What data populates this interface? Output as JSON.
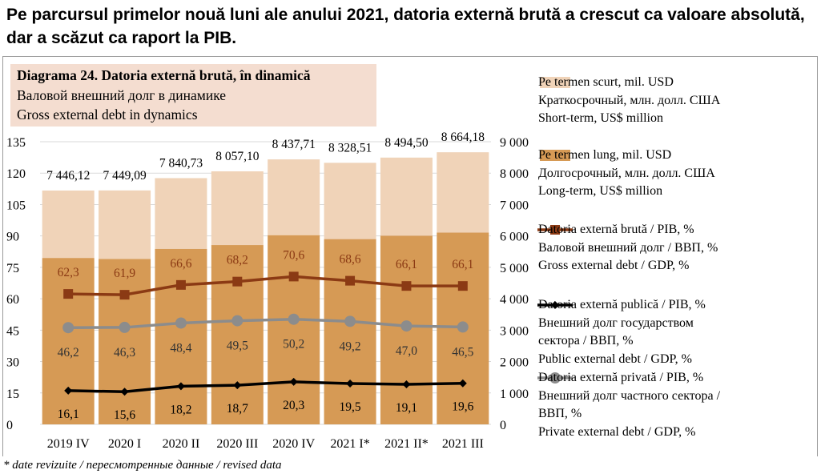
{
  "headline": "Pe parcursul primelor nouă luni ale anului 2021, datoria externă brută a crescut ca valoare absolută, dar a scăzut ca raport la PIB.",
  "diagram_title": {
    "line1": "Diagrama 24. Datoria externă brută, în dinamică",
    "line2": "Валовой внешний долг в динамике",
    "line3": "Gross external debt in dynamics"
  },
  "legend": [
    {
      "id": "short",
      "lines": [
        "Pe termen scurt, mil. USD",
        "Краткосрочный, млн. долл. США",
        "Short-term, US$ million"
      ]
    },
    {
      "id": "long",
      "lines": [
        "Pe termen lung, mil. USD",
        "Долгосрочный, млн. долл. США",
        "Long-term, US$ million"
      ]
    },
    {
      "id": "gross",
      "lines": [
        "Datoria externă brută / PIB, %",
        "Валовой внешний долг / ВВП, %",
        "Gross external debt / GDP, %"
      ]
    },
    {
      "id": "public",
      "lines": [
        "Datoria externă publică  / PIB, %",
        "Внешний долг государством",
        "сектора  / ВВП, %",
        "Public external debt / GDP, %"
      ]
    },
    {
      "id": "private",
      "lines": [
        "Datoria externă privată  / PIB, %",
        "Внешний долг частного сектора /",
        "ВВП, %",
        "Private external debt / GDP, %"
      ]
    }
  ],
  "footnote": "* date revizuite / пересмотренные данные / revised data",
  "colors": {
    "short_term": "#f0d3b8",
    "long_term": "#d69a55",
    "gross_line": "#8b3a14",
    "public_line": "#000000",
    "private_line": "#8c8c8c",
    "title_bg": "#f4ddd0",
    "gridline": "#d9d9d9"
  },
  "chart_data": {
    "type": "bar",
    "categories": [
      "2019 IV",
      "2020 I",
      "2020 II",
      "2020 III",
      "2020 IV",
      "2021 I*",
      "2021 II*",
      "2021 III"
    ],
    "total_labels": [
      "7 446,12",
      "7 449,09",
      "7 840,73",
      "8 057,10",
      "8 437,71",
      "8 328,51",
      "8 494,50",
      "8 664,18"
    ],
    "series": [
      {
        "name": "Pe termen lung, mil. USD",
        "axis": "right",
        "kind": "stacked-bar",
        "values": [
          5300,
          5270,
          5590,
          5710,
          6025,
          5900,
          6010,
          6110
        ]
      },
      {
        "name": "Pe termen scurt, mil. USD",
        "axis": "right",
        "kind": "stacked-bar",
        "values": [
          2146.12,
          2179.09,
          2250.73,
          2347.1,
          2412.71,
          2428.51,
          2484.5,
          2554.18
        ]
      },
      {
        "name": "Datoria externă brută / PIB, %",
        "axis": "left",
        "kind": "line",
        "values": [
          62.3,
          61.9,
          66.6,
          68.2,
          70.6,
          68.6,
          66.1,
          66.1
        ],
        "labels": [
          "62,3",
          "61,9",
          "66,6",
          "68,2",
          "70,6",
          "68,6",
          "66,1",
          "66,1"
        ]
      },
      {
        "name": "Datoria externă publică  / PIB, %",
        "axis": "left",
        "kind": "line",
        "values": [
          16.1,
          15.6,
          18.2,
          18.7,
          20.3,
          19.5,
          19.1,
          19.6
        ],
        "labels": [
          "16,1",
          "15,6",
          "18,2",
          "18,7",
          "20,3",
          "19,5",
          "19,1",
          "19,6"
        ]
      },
      {
        "name": "Datoria externă privată  / PIB, %",
        "axis": "left",
        "kind": "line",
        "values": [
          46.2,
          46.3,
          48.4,
          49.5,
          50.2,
          49.2,
          47.0,
          46.5
        ],
        "labels": [
          "46,2",
          "46,3",
          "48,4",
          "49,5",
          "50,2",
          "49,2",
          "47,0",
          "46,5"
        ]
      }
    ],
    "y_left": {
      "min": 0,
      "max": 135,
      "ticks": [
        0,
        15,
        30,
        45,
        60,
        75,
        90,
        105,
        120,
        135
      ],
      "tick_labels": [
        "0",
        "15",
        "30",
        "45",
        "60",
        "75",
        "90",
        "105",
        "120",
        "135"
      ]
    },
    "y_right": {
      "min": 0,
      "max": 9000,
      "ticks": [
        0,
        1000,
        2000,
        3000,
        4000,
        5000,
        6000,
        7000,
        8000,
        9000
      ],
      "tick_labels": [
        "0",
        "1 000",
        "2 000",
        "3 000",
        "4 000",
        "5 000",
        "6 000",
        "7 000",
        "8 000",
        "9 000"
      ]
    },
    "grid": true,
    "legend_position": "right"
  }
}
